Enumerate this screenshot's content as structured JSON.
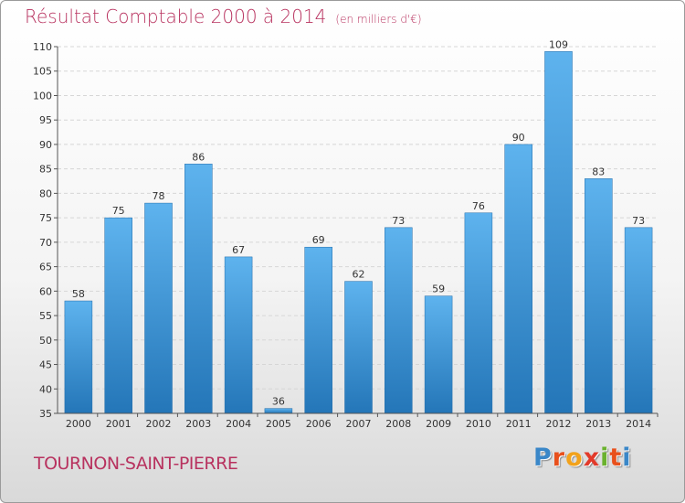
{
  "header": {
    "title": "Résultat Comptable 2000 à 2014",
    "unit": "(en milliers d'€)"
  },
  "footer": {
    "city": "TOURNON-SAINT-PIERRE",
    "logo": [
      "P",
      "r",
      "o",
      "x",
      "i",
      "t",
      "i"
    ]
  },
  "colors": {
    "title": "#b8325f",
    "bar_top": "#5eb3ee",
    "bar_bottom": "#2476b8",
    "logo": [
      "#3a87c8",
      "#e8501c",
      "#f2a21b",
      "#e23a2a",
      "#6ab22e",
      "#e8501c",
      "#3a87c8"
    ]
  },
  "chart_data": {
    "type": "bar",
    "title": "Résultat Comptable 2000 à 2014",
    "subtitle": "(en milliers d'€)",
    "categories": [
      "2000",
      "2001",
      "2002",
      "2003",
      "2004",
      "2005",
      "2006",
      "2007",
      "2008",
      "2009",
      "2010",
      "2011",
      "2012",
      "2013",
      "2014"
    ],
    "values": [
      58,
      75,
      78,
      86,
      67,
      36,
      69,
      62,
      73,
      59,
      76,
      90,
      109,
      83,
      73
    ],
    "ylim": [
      35,
      110
    ],
    "yticks": [
      35,
      40,
      45,
      50,
      55,
      60,
      65,
      70,
      75,
      80,
      85,
      90,
      95,
      100,
      105,
      110
    ],
    "grid": true,
    "data_labels": true
  }
}
